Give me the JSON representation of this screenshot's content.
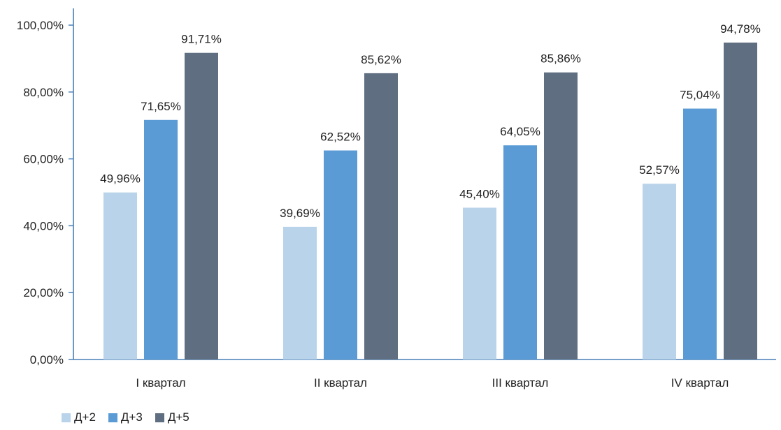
{
  "chart_data": {
    "type": "bar",
    "title": "",
    "xlabel": "",
    "ylabel": "",
    "categories": [
      "I квартал",
      "II квартал",
      "III квартал",
      "IV квартал"
    ],
    "series": [
      {
        "name": "Д+2",
        "color": "#b9d3ea",
        "values": [
          49.96,
          39.69,
          45.4,
          52.57
        ],
        "labels": [
          "49,96%",
          "39,69%",
          "45,40%",
          "52,57%"
        ]
      },
      {
        "name": "Д+3",
        "color": "#5b9bd5",
        "values": [
          71.65,
          62.52,
          64.05,
          75.04
        ],
        "labels": [
          "71,65%",
          "62,52%",
          "64,05%",
          "75,04%"
        ]
      },
      {
        "name": "Д+5",
        "color": "#5f6e80",
        "values": [
          91.71,
          85.62,
          85.86,
          94.78
        ],
        "labels": [
          "91,71%",
          "85,62%",
          "85,86%",
          "94,78%"
        ]
      }
    ],
    "ylim": [
      0,
      100
    ],
    "yticks": [
      0,
      20,
      40,
      60,
      80,
      100
    ],
    "ytick_labels": [
      "0,00%",
      "20,00%",
      "40,00%",
      "60,00%",
      "80,00%",
      "100,00%"
    ],
    "grid": false,
    "legend_position": "bottom-left",
    "axis_color": "#4a7fb5"
  }
}
